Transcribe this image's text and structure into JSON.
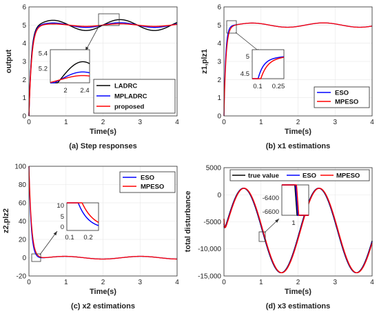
{
  "colors": {
    "black": "#000000",
    "blue": "#0000ff",
    "red": "#ff0000"
  },
  "chart_data": [
    {
      "id": "a",
      "type": "line",
      "caption": "(a) Step responses",
      "xlabel": "Time(s)",
      "ylabel": "output",
      "xlim": [
        0,
        4
      ],
      "ylim": [
        0,
        6
      ],
      "xticks": [
        "0",
        "1",
        "2",
        "3",
        "4"
      ],
      "yticks": [
        "0",
        "1",
        "2",
        "3",
        "4",
        "5",
        "6"
      ],
      "grid": true,
      "legend_position": "bottom-right",
      "series": [
        {
          "name": "LADRC",
          "color": "#000000"
        },
        {
          "name": "MPLADRC",
          "color": "#0000ff"
        },
        {
          "name": "proposed",
          "color": "#ff0000"
        }
      ],
      "inset": {
        "xticks": [
          "2",
          "2.4"
        ],
        "yticks": [
          "5.2",
          "5.4"
        ],
        "xlim": [
          1.8,
          2.6
        ],
        "ylim": [
          4.95,
          5.5
        ]
      }
    },
    {
      "id": "b",
      "type": "line",
      "caption": "(b) x1 estimations",
      "xlabel": "Time(s)",
      "ylabel": "z1,plz1",
      "xlim": [
        0,
        4
      ],
      "ylim": [
        0,
        6
      ],
      "xticks": [
        "0",
        "1",
        "2",
        "3",
        "4"
      ],
      "yticks": [
        "0",
        "1",
        "2",
        "3",
        "4",
        "5",
        "6"
      ],
      "grid": true,
      "legend_position": "bottom-right",
      "series": [
        {
          "name": "ESO",
          "color": "#0000ff"
        },
        {
          "name": "MPESO",
          "color": "#ff0000"
        }
      ],
      "inset": {
        "xticks": [
          "0.1",
          "0.25"
        ],
        "yticks": [
          "4.5",
          "5"
        ],
        "xlim": [
          0.05,
          0.3
        ],
        "ylim": [
          4.4,
          5.2
        ]
      }
    },
    {
      "id": "c",
      "type": "line",
      "caption": "(c) x2 estimations",
      "xlabel": "Time(s)",
      "ylabel": "z2,plz2",
      "xlim": [
        0,
        4
      ],
      "ylim": [
        -20,
        100
      ],
      "xticks": [
        "0",
        "1",
        "2",
        "3",
        "4"
      ],
      "yticks": [
        "-20",
        "0",
        "20",
        "40",
        "60",
        "80",
        "100"
      ],
      "grid": true,
      "legend_position": "top-right",
      "series": [
        {
          "name": "ESO",
          "color": "#0000ff"
        },
        {
          "name": "MPESO",
          "color": "#ff0000"
        }
      ],
      "inset": {
        "xticks": [
          "0.1",
          "0.2"
        ],
        "yticks": [
          "0",
          "5",
          "10"
        ],
        "xlim": [
          0.07,
          0.25
        ],
        "ylim": [
          -1,
          10
        ]
      }
    },
    {
      "id": "d",
      "type": "line",
      "caption": "(d) x3 estimations",
      "xlabel": "Time(s)",
      "ylabel": "total disturbance",
      "xlim": [
        0,
        4
      ],
      "ylim": [
        -15000,
        5000
      ],
      "xticks": [
        "0",
        "1",
        "2",
        "3",
        "4"
      ],
      "yticks": [
        "-15,000",
        "-10,000",
        "-5000",
        "0",
        "5000"
      ],
      "grid": true,
      "legend_position": "top",
      "series": [
        {
          "name": "true value",
          "color": "#000000"
        },
        {
          "name": "ESO",
          "color": "#0000ff"
        },
        {
          "name": "MPESO",
          "color": "#ff0000"
        }
      ],
      "inset": {
        "xticks": [
          "1"
        ],
        "yticks": [
          "-6600",
          "-6400"
        ],
        "xlim": [
          0.9,
          1.15
        ],
        "ylim": [
          -6750,
          -6250
        ]
      }
    }
  ]
}
